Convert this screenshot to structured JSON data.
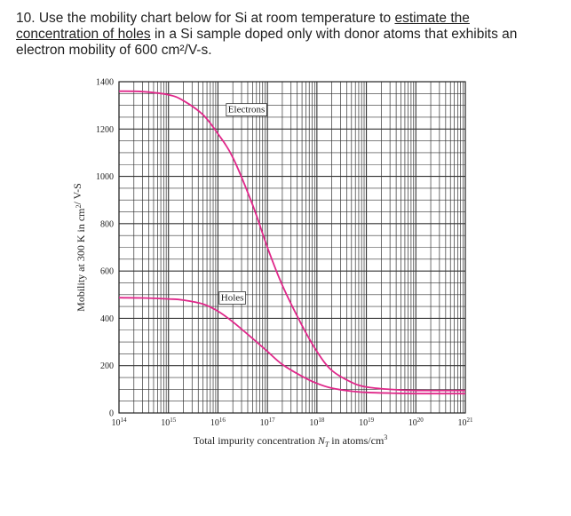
{
  "question": {
    "p1": "10. Use the mobility chart below for Si at room temperature to ",
    "u1": "estimate the concentration of holes",
    "p2": " in a Si sample doped only with donor atoms that exhibits an electron mobility of 600 cm²/V-s."
  },
  "chart_data": {
    "type": "line",
    "x_scale": "log",
    "xlim": [
      100000000000000.0,
      1e+21
    ],
    "ylim": [
      0,
      1400
    ],
    "grid": true,
    "xlabel": "Total impurity concentration N_T in atoms/cm³",
    "ylabel": "Mobility at 300 K in cm²/ V-S",
    "x_ticks": [
      {
        "value": 100000000000000.0,
        "base": "10",
        "exp": "14"
      },
      {
        "value": 1000000000000000.0,
        "base": "10",
        "exp": "15"
      },
      {
        "value": 1e+16,
        "base": "10",
        "exp": "16"
      },
      {
        "value": 1e+17,
        "base": "10",
        "exp": "17"
      },
      {
        "value": 1e+18,
        "base": "10",
        "exp": "18"
      },
      {
        "value": 1e+19,
        "base": "10",
        "exp": "19"
      },
      {
        "value": 1e+20,
        "base": "10",
        "exp": "20"
      },
      {
        "value": 1e+21,
        "base": "10",
        "exp": "21"
      }
    ],
    "y_ticks": [
      "0",
      "200",
      "400",
      "600",
      "800",
      "1000",
      "1200",
      "1400"
    ],
    "series": [
      {
        "name": "Electrons",
        "color": "#e0288a",
        "x": [
          100000000000000.0,
          300000000000000.0,
          1000000000000000.0,
          2000000000000000.0,
          5000000000000000.0,
          1e+16,
          2e+16,
          5e+16,
          1e+17,
          2e+17,
          5e+17,
          1e+18,
          2e+18,
          5e+18,
          1e+19,
          3e+19,
          1e+20,
          1e+21
        ],
        "y": [
          1360,
          1358,
          1345,
          1320,
          1260,
          1180,
          1080,
          880,
          700,
          540,
          370,
          260,
          180,
          130,
          110,
          100,
          95,
          95
        ]
      },
      {
        "name": "Holes",
        "color": "#e0288a",
        "x": [
          100000000000000.0,
          300000000000000.0,
          1000000000000000.0,
          2000000000000000.0,
          5000000000000000.0,
          1e+16,
          2e+16,
          5e+16,
          1e+17,
          2e+17,
          5e+17,
          1e+18,
          2e+18,
          5e+18,
          1e+19,
          3e+19,
          1e+20,
          1e+21
        ],
        "y": [
          487,
          486,
          482,
          477,
          460,
          430,
          385,
          315,
          260,
          205,
          155,
          125,
          105,
          92,
          87,
          84,
          82,
          82
        ]
      }
    ]
  }
}
